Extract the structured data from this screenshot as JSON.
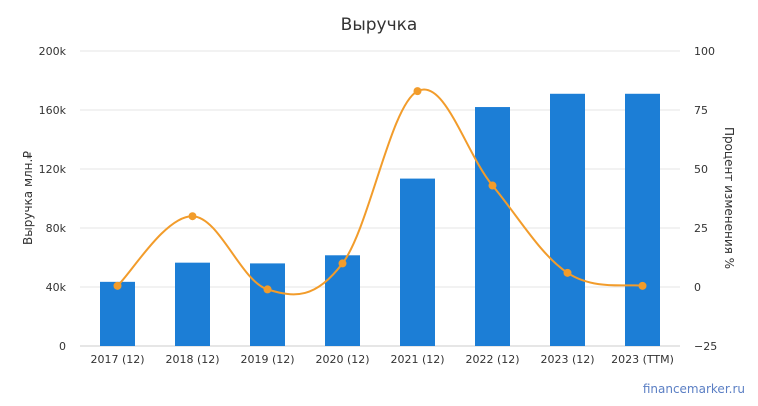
{
  "chart_data": {
    "type": "bar",
    "title": "Выручка",
    "categories": [
      "2017 (12)",
      "2018 (12)",
      "2019 (12)",
      "2020 (12)",
      "2021 (12)",
      "2022 (12)",
      "2023 (12)",
      "2023 (TTM)"
    ],
    "series": [
      {
        "type": "bar",
        "axis": "left",
        "color": "#1c7ed6",
        "values": [
          43500,
          56500,
          56000,
          61500,
          113500,
          162000,
          171000,
          171000
        ]
      },
      {
        "type": "line",
        "axis": "right",
        "color": "#f29c2b",
        "values": [
          0.5,
          30,
          -1,
          10,
          83,
          43,
          6,
          0.5
        ]
      }
    ],
    "y_left": {
      "label": "Выручка млн.₽",
      "range": [
        0,
        200000
      ],
      "ticks": [
        0,
        40000,
        80000,
        120000,
        160000,
        200000
      ],
      "tick_labels": [
        "0",
        "40k",
        "80k",
        "120k",
        "160k",
        "200k"
      ]
    },
    "y_right": {
      "label": "Процент изменения %",
      "range": [
        -25,
        100
      ],
      "ticks": [
        -25,
        0,
        25,
        50,
        75,
        100
      ],
      "tick_labels": [
        "−25",
        "0",
        "25",
        "50",
        "75",
        "100"
      ]
    },
    "grid": true,
    "gridline_color": "#e6e6e6",
    "watermark": "financemarker.ru"
  }
}
